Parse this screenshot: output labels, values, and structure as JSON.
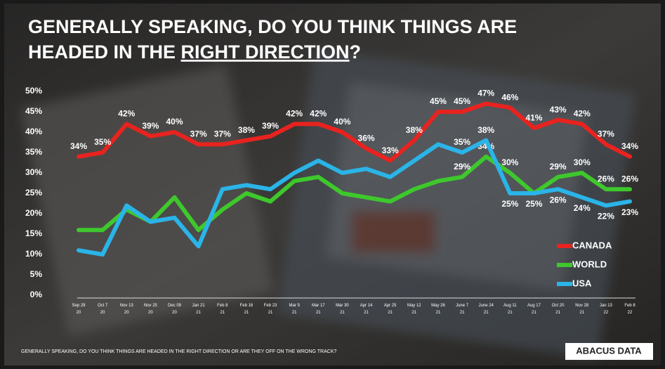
{
  "chart_data": {
    "type": "line",
    "title": [
      "GENERALLY SPEAKING, DO YOU THINK THINGS ARE",
      "HEADED IN THE ",
      "RIGHT DIRECTION",
      "?"
    ],
    "categories": [
      "Sep 29 20",
      "Oct 7 20",
      "Nov 13 20",
      "Nov 25 20",
      "Dec 09 20",
      "Jan 21 21",
      "Feb 8 21",
      "Feb 16 21",
      "Feb 23 21",
      "Mar 9 21",
      "Mar 17 21",
      "Mar 30 21",
      "Apr 14 21",
      "Apr 25 21",
      "May 12 21",
      "May 26 21",
      "June 7 21",
      "June 24 21",
      "Aug 11 21",
      "Aug 17 21",
      "Oct 20 21",
      "Nov 28 21",
      "Jan 13 22",
      "Feb 8 22"
    ],
    "series": [
      {
        "name": "CANADA",
        "color": "#e8231f",
        "values": [
          34,
          35,
          42,
          39,
          40,
          37,
          37,
          38,
          39,
          42,
          42,
          40,
          36,
          33,
          38,
          45,
          45,
          47,
          46,
          41,
          43,
          42,
          37,
          34
        ],
        "value_labels": [
          "34%",
          "35%",
          "42%",
          "39%",
          "40%",
          "37%",
          "37%",
          "38%",
          "39%",
          "42%",
          "42%",
          "40%",
          "36%",
          "33%",
          "38%",
          "45%",
          "45%",
          "47%",
          "46%",
          "41%",
          "43%",
          "42%",
          "37%",
          "34%"
        ]
      },
      {
        "name": "WORLD",
        "color": "#3ec82c",
        "values": [
          16,
          16,
          21,
          18,
          24,
          16,
          21,
          25,
          23,
          28,
          29,
          25,
          24,
          23,
          26,
          28,
          29,
          34,
          30,
          25,
          29,
          30,
          26,
          26
        ],
        "value_labels": [
          null,
          null,
          null,
          null,
          null,
          null,
          null,
          null,
          null,
          null,
          null,
          null,
          null,
          null,
          null,
          null,
          "29%",
          "34%",
          "30%",
          null,
          "29%",
          "30%",
          "26%",
          "26%"
        ]
      },
      {
        "name": "USA",
        "color": "#2ab4e8",
        "values": [
          11,
          10,
          22,
          18,
          19,
          12,
          26,
          27,
          26,
          30,
          33,
          30,
          31,
          29,
          33,
          37,
          35,
          38,
          25,
          25,
          26,
          24,
          22,
          23
        ],
        "value_labels": [
          null,
          null,
          null,
          null,
          null,
          null,
          null,
          null,
          null,
          null,
          null,
          null,
          null,
          null,
          null,
          null,
          "35%",
          "38%",
          "25%",
          "25%",
          "26%",
          "24%",
          "22%",
          "23%"
        ]
      }
    ],
    "ylim": [
      0,
      50
    ],
    "yticks": [
      {
        "value": 0,
        "label": "0%"
      },
      {
        "value": 5,
        "label": "5%"
      },
      {
        "value": 10,
        "label": "10%"
      },
      {
        "value": 15,
        "label": "15%"
      },
      {
        "value": 20,
        "label": "20%"
      },
      {
        "value": 25,
        "label": "25%"
      },
      {
        "value": 30,
        "label": "30%"
      },
      {
        "value": 35,
        "label": "35%"
      },
      {
        "value": 40,
        "label": "40%"
      },
      {
        "value": 45,
        "label": "45%"
      },
      {
        "value": 50,
        "label": "50%"
      }
    ],
    "footnote": "GENERALLY SPEAKING, DO YOU THINK THINGS ARE HEADED IN THE RIGHT DIRECTION OR ARE THEY OFF ON THE WRONG TRACK?",
    "logo": "ABACUS DATA"
  }
}
